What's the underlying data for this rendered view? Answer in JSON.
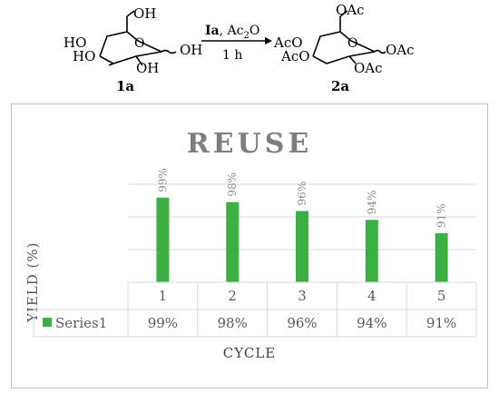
{
  "reaction": {
    "reactant_label": "1a",
    "product_label": "2a",
    "reagent_label": "Ia",
    "reagent_sep": ", ",
    "reagent_ac": "Ac",
    "reagent_sub": "2",
    "reagent_o": "O",
    "time": "1 h",
    "reactant_groups": [
      "OH",
      "HO",
      "HO",
      "OH",
      "OH"
    ],
    "product_groups": [
      "OAc",
      "AcO",
      "AcO",
      "OAc",
      "OAc"
    ]
  },
  "chart_data": {
    "type": "bar",
    "title": "REUSE",
    "xlabel": "CYCLE",
    "ylabel": "YIELD (%)",
    "categories": [
      "1",
      "2",
      "3",
      "4",
      "5"
    ],
    "series": [
      {
        "name": "Series1",
        "values": [
          99,
          98,
          96,
          94,
          91
        ],
        "labels": [
          "99%",
          "98%",
          "96%",
          "94%",
          "91%"
        ]
      }
    ],
    "y_baseline": 80,
    "y_max": 102,
    "grid": true,
    "legend": "data-table",
    "colors": {
      "bar": "#3cb043",
      "grid": "#d9d9d9",
      "text": "#595959"
    }
  }
}
